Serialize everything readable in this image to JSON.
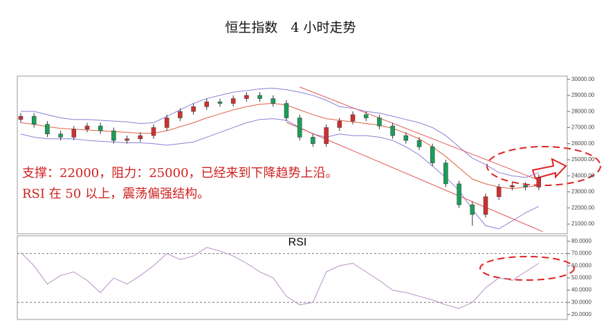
{
  "chart_data": {
    "type": "candlestick",
    "title": "恒生指数　4 小时走势",
    "annotations": [
      "支撑：22000，阻力：25000，已经来到下降趋势上沿。",
      "RSI 在 50 以上，震荡偏强结构。"
    ],
    "up_color": "#d03030",
    "down_color": "#1a9e5a",
    "open": [
      27500,
      27700,
      27200,
      26600,
      26400,
      26900,
      27100,
      26800,
      26200,
      26300,
      26500,
      27000,
      27600,
      28000,
      28300,
      28600,
      28500,
      28800,
      29000,
      28800,
      28500,
      27600,
      26400,
      26000,
      27000,
      27400,
      27800,
      27600,
      27100,
      26500,
      26200,
      25800,
      24800,
      23500,
      22200,
      21600,
      22700,
      23300,
      23400,
      23300
    ],
    "high": [
      27900,
      27900,
      27400,
      26800,
      27100,
      27300,
      27300,
      27000,
      26500,
      26700,
      27200,
      27800,
      28200,
      28500,
      28800,
      28800,
      29000,
      29200,
      29200,
      29000,
      28700,
      27800,
      26600,
      27200,
      27600,
      28000,
      28000,
      27800,
      27300,
      26700,
      26400,
      26000,
      25000,
      23700,
      22400,
      22900,
      23500,
      23600,
      23600,
      24100
    ],
    "low": [
      27300,
      27000,
      26400,
      26200,
      26200,
      26700,
      26600,
      26000,
      26000,
      26100,
      26300,
      26800,
      27400,
      27800,
      28100,
      28300,
      28300,
      28600,
      28600,
      28300,
      27400,
      26200,
      25800,
      25800,
      26800,
      27200,
      27400,
      26900,
      26300,
      26000,
      25600,
      24600,
      23300,
      22000,
      20900,
      21400,
      22500,
      23100,
      23100,
      23100
    ],
    "close": [
      27700,
      27200,
      26600,
      26400,
      26900,
      27100,
      26800,
      26200,
      26300,
      26500,
      27000,
      27600,
      28000,
      28300,
      28600,
      28500,
      28800,
      29000,
      28800,
      28500,
      27600,
      26400,
      26000,
      27000,
      27400,
      27800,
      27600,
      27100,
      26500,
      26200,
      25800,
      24800,
      23500,
      22200,
      21600,
      22700,
      23300,
      23400,
      23300,
      23900
    ],
    "bands": [
      {
        "color": "#8a7fd6",
        "values": [
          28000,
          28000,
          27800,
          27600,
          27500,
          27500,
          27450,
          27400,
          27350,
          27250,
          27300,
          27700,
          28100,
          28500,
          28800,
          29000,
          29200,
          29300,
          29400,
          29450,
          29350,
          29200,
          29000,
          28700,
          28300,
          28200,
          28000,
          27900,
          27700,
          27500,
          27300,
          27000,
          26500,
          25800,
          25100,
          24700,
          24200,
          24000,
          23900,
          24200
        ]
      },
      {
        "color": "#e06040",
        "values": [
          27300,
          27200,
          27050,
          26950,
          26900,
          26850,
          26800,
          26750,
          26700,
          26650,
          26650,
          26800,
          27050,
          27300,
          27600,
          27850,
          28100,
          28300,
          28450,
          28500,
          28400,
          28100,
          27800,
          27550,
          27450,
          27350,
          27250,
          27150,
          26950,
          26650,
          26300,
          25800,
          25200,
          24500,
          23800,
          23500,
          23300,
          23200,
          23300,
          23400
        ]
      },
      {
        "color": "#8a7fd6",
        "values": [
          26600,
          26400,
          26300,
          26300,
          26300,
          26200,
          26150,
          26100,
          26050,
          26050,
          26000,
          25900,
          26000,
          26100,
          26400,
          26700,
          27000,
          27300,
          27500,
          27550,
          27450,
          27000,
          26600,
          26400,
          26600,
          26500,
          26500,
          26400,
          26200,
          25800,
          25300,
          24600,
          23900,
          23100,
          21900,
          20900,
          20700,
          21200,
          21700,
          22100
        ]
      }
    ],
    "trendlines": [
      {
        "color": "#e05050",
        "x": [
          21,
          39
        ],
        "y": [
          29520,
          23730
        ]
      },
      {
        "color": "#e05050",
        "x": [
          20,
          39.3
        ],
        "y": [
          27325,
          20530
        ]
      }
    ],
    "ylim": [
      20400,
      30200
    ],
    "yticks": [
      {
        "value": 21000,
        "label": "21000.00"
      },
      {
        "value": 22000,
        "label": "22000.00"
      },
      {
        "value": 23000,
        "label": "23000.00"
      },
      {
        "value": 24000,
        "label": "24000.00"
      },
      {
        "value": 25000,
        "label": "25000.00"
      },
      {
        "value": 26000,
        "label": "26000.00"
      },
      {
        "value": 27000,
        "label": "27000.00"
      },
      {
        "value": 28000,
        "label": "28000.00"
      },
      {
        "value": 29000,
        "label": "29000.00"
      },
      {
        "value": 30000,
        "label": "30000.00"
      }
    ],
    "rsi": {
      "title": "RSI",
      "color": "#b58fc4",
      "values": [
        71,
        60,
        45,
        52,
        55,
        48,
        38,
        50,
        45,
        52,
        60,
        70,
        65,
        68,
        75,
        72,
        68,
        62,
        55,
        50,
        35,
        28,
        30,
        55,
        60,
        62,
        55,
        48,
        40,
        38,
        35,
        32,
        28,
        25,
        30,
        42,
        50,
        48,
        55,
        62
      ],
      "ylim": [
        16,
        84.5
      ],
      "levels": [
        70,
        30
      ],
      "yticks": [
        {
          "value": 20,
          "label": "20.0000"
        },
        {
          "value": 30,
          "label": "30.0000"
        },
        {
          "value": 40,
          "label": "40.0000"
        },
        {
          "value": 50,
          "label": "50.0000"
        },
        {
          "value": 60,
          "label": "60.0000"
        },
        {
          "value": 70,
          "label": "70.0000"
        },
        {
          "value": 80,
          "label": "80.0000"
        }
      ]
    }
  }
}
